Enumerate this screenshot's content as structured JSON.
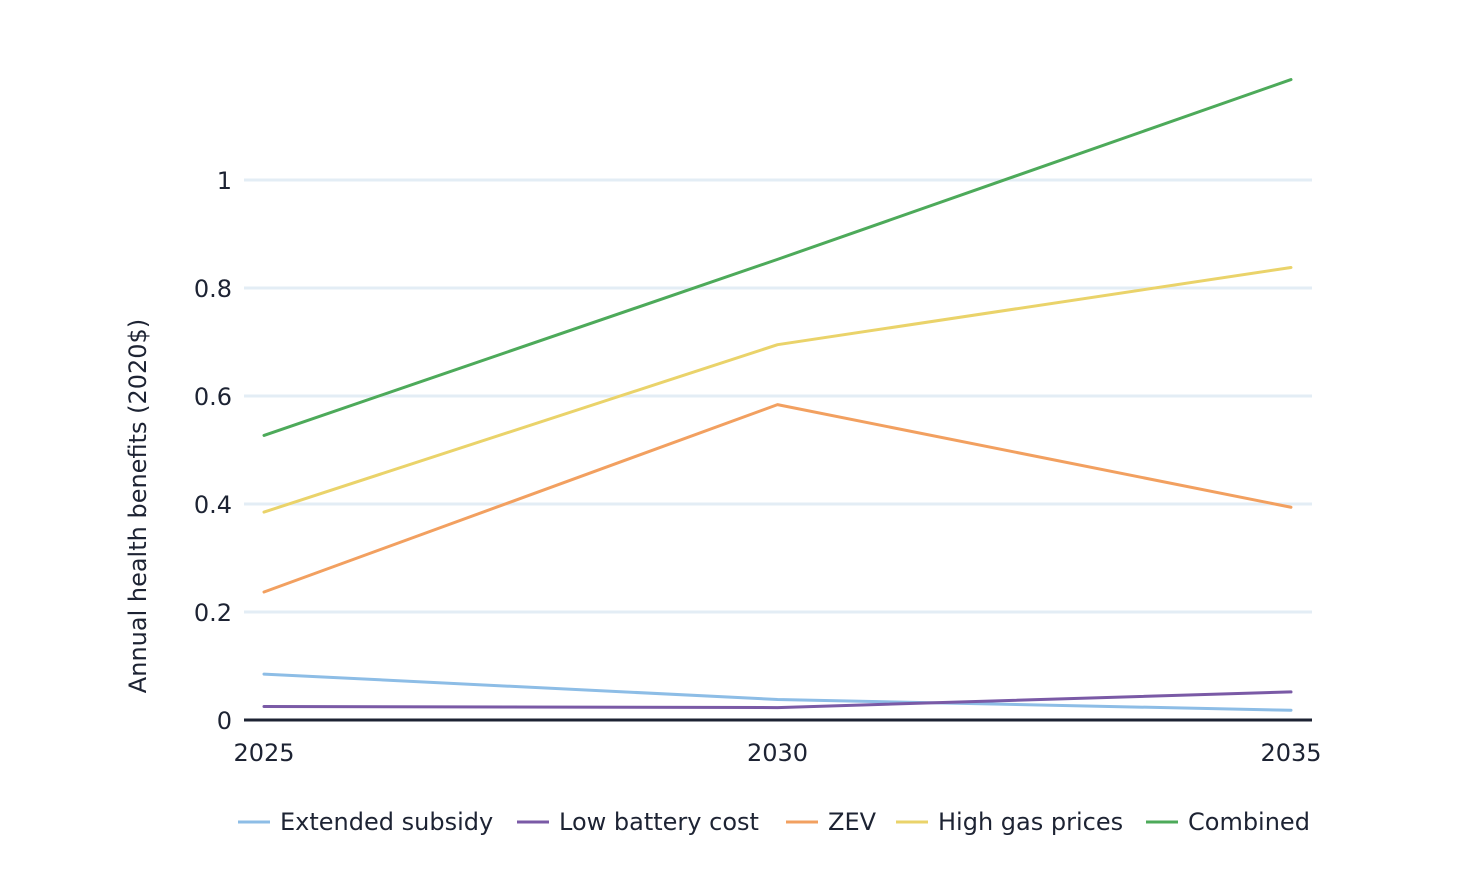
{
  "chart_data": {
    "type": "line",
    "title": "",
    "xlabel": "",
    "ylabel": "Annual health benefits (2020$)",
    "x": [
      2025,
      2030,
      2035
    ],
    "xticks": [
      "2025",
      "2030",
      "2035"
    ],
    "ylim": [
      0,
      1.25
    ],
    "yticks": [
      {
        "value": 0,
        "label": "0"
      },
      {
        "value": 0.2,
        "label": "0.2"
      },
      {
        "value": 0.4,
        "label": "0.4"
      },
      {
        "value": 0.6,
        "label": "0.6"
      },
      {
        "value": 0.8,
        "label": "0.8"
      },
      {
        "value": 1,
        "label": "1"
      }
    ],
    "grid": true,
    "legend_position": "bottom",
    "series": [
      {
        "name": "Extended subsidy",
        "color": "#8dbde6",
        "values": [
          0.085,
          0.038,
          0.018
        ]
      },
      {
        "name": "Low battery cost",
        "color": "#7a5aa6",
        "values": [
          0.025,
          0.023,
          0.052
        ]
      },
      {
        "name": "ZEV",
        "color": "#f2a060",
        "values": [
          0.237,
          0.584,
          0.394
        ]
      },
      {
        "name": "High gas prices",
        "color": "#ead36a",
        "values": [
          0.385,
          0.695,
          0.838
        ]
      },
      {
        "name": "Combined",
        "color": "#4daa5a",
        "values": [
          0.527,
          0.853,
          1.186
        ]
      }
    ],
    "colors": {
      "grid": "#e3edf5",
      "axis": "#1d2333",
      "text": "#1d2333"
    }
  }
}
